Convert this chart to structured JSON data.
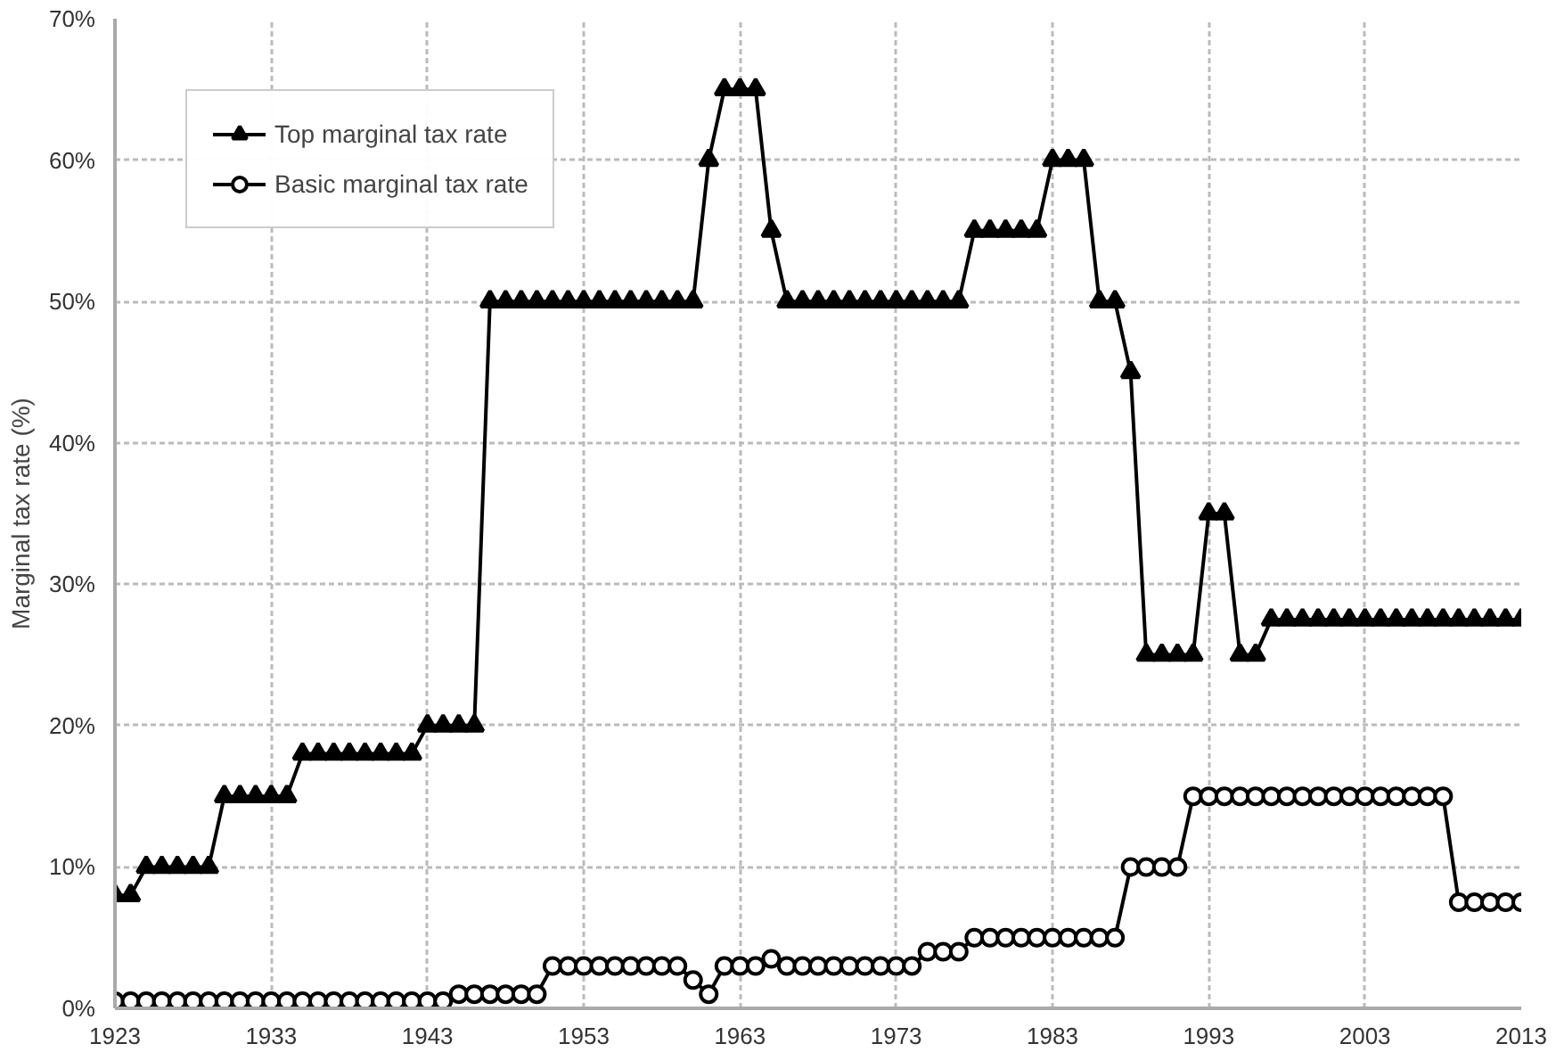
{
  "chart_data": {
    "type": "line",
    "ylabel": "Marginal tax rate (%)",
    "x": [
      1923,
      1924,
      1925,
      1926,
      1927,
      1928,
      1929,
      1930,
      1931,
      1932,
      1933,
      1934,
      1935,
      1936,
      1937,
      1938,
      1939,
      1940,
      1941,
      1942,
      1943,
      1944,
      1945,
      1946,
      1947,
      1948,
      1949,
      1950,
      1951,
      1952,
      1953,
      1954,
      1955,
      1956,
      1957,
      1958,
      1959,
      1960,
      1961,
      1962,
      1963,
      1964,
      1965,
      1966,
      1967,
      1968,
      1969,
      1970,
      1971,
      1972,
      1973,
      1974,
      1975,
      1976,
      1977,
      1978,
      1979,
      1980,
      1981,
      1982,
      1983,
      1984,
      1985,
      1986,
      1987,
      1988,
      1989,
      1990,
      1991,
      1992,
      1993,
      1994,
      1995,
      1996,
      1997,
      1998,
      1999,
      2000,
      2001,
      2002,
      2003,
      2004,
      2005,
      2006,
      2007,
      2008,
      2009,
      2010,
      2011,
      2012,
      2013
    ],
    "series": [
      {
        "name": "Top marginal tax rate",
        "color": "#000000",
        "marker": "triangle",
        "values": [
          8,
          8,
          10,
          10,
          10,
          10,
          10,
          15,
          15,
          15,
          15,
          15,
          18,
          18,
          18,
          18,
          18,
          18,
          18,
          18,
          20,
          20,
          20,
          20,
          50,
          50,
          50,
          50,
          50,
          50,
          50,
          50,
          50,
          50,
          50,
          50,
          50,
          50,
          60,
          65,
          65,
          65,
          55,
          50,
          50,
          50,
          50,
          50,
          50,
          50,
          50,
          50,
          50,
          50,
          50,
          55,
          55,
          55,
          55,
          55,
          60,
          60,
          60,
          50,
          50,
          45,
          25,
          25,
          25,
          25,
          35,
          35,
          25,
          25,
          27.5,
          27.5,
          27.5,
          27.5,
          27.5,
          27.5,
          27.5,
          27.5,
          27.5,
          27.5,
          27.5,
          27.5,
          27.5,
          27.5,
          27.5,
          27.5,
          27.5
        ]
      },
      {
        "name": "Basic marginal tax rate",
        "color": "#000000",
        "marker": "circle",
        "values": [
          0.5,
          0.5,
          0.5,
          0.5,
          0.5,
          0.5,
          0.5,
          0.5,
          0.5,
          0.5,
          0.5,
          0.5,
          0.5,
          0.5,
          0.5,
          0.5,
          0.5,
          0.5,
          0.5,
          0.5,
          0.5,
          0.5,
          1,
          1,
          1,
          1,
          1,
          1,
          3,
          3,
          3,
          3,
          3,
          3,
          3,
          3,
          3,
          2,
          1,
          3,
          3,
          3,
          3.5,
          3,
          3,
          3,
          3,
          3,
          3,
          3,
          3,
          3,
          4,
          4,
          4,
          5,
          5,
          5,
          5,
          5,
          5,
          5,
          5,
          5,
          5,
          10,
          10,
          10,
          10,
          15,
          15,
          15,
          15,
          15,
          15,
          15,
          15,
          15,
          15,
          15,
          15,
          15,
          15,
          15,
          15,
          15,
          7.5,
          7.5,
          7.5,
          7.5,
          7.5
        ]
      }
    ],
    "xlim": [
      1923,
      2013
    ],
    "xticks": [
      1923,
      1933,
      1943,
      1953,
      1963,
      1973,
      1983,
      1993,
      2003,
      2013
    ],
    "ylim": [
      0,
      70
    ],
    "yticks": [
      {
        "value": 0,
        "label": "0%"
      },
      {
        "value": 10,
        "label": "10%"
      },
      {
        "value": 20,
        "label": "20%"
      },
      {
        "value": 30,
        "label": "30%"
      },
      {
        "value": 40,
        "label": "40%"
      },
      {
        "value": 50,
        "label": "50%"
      },
      {
        "value": 60,
        "label": "60%"
      },
      {
        "value": 70,
        "label": "70%"
      }
    ],
    "grid": true,
    "legend": "top left",
    "line_style": "solid"
  }
}
